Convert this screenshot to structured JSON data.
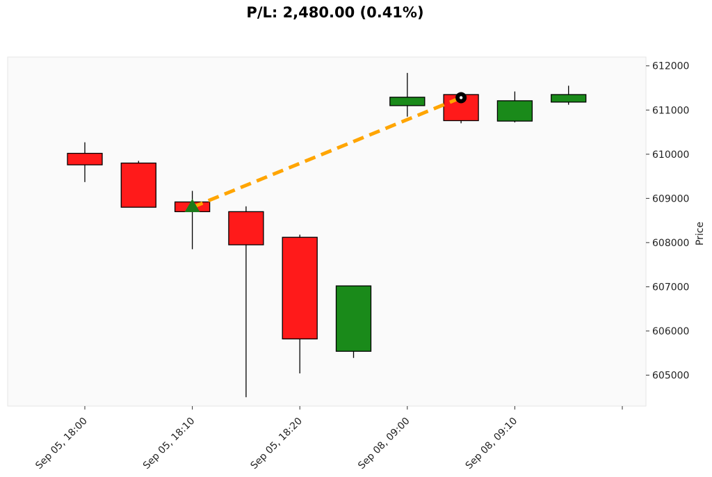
{
  "chart_data": {
    "type": "candlestick",
    "title": "P/L: 2,480.00 (0.41%)",
    "xlabel": "",
    "ylabel": "Price",
    "ylim": [
      604300,
      612200
    ],
    "grid": false,
    "yticks": [
      605000,
      606000,
      607000,
      608000,
      609000,
      610000,
      611000,
      612000
    ],
    "xtick_labels": [
      "Sep 05, 18:00",
      "Sep 05, 18:10",
      "Sep 05, 18:20",
      "Sep 08, 09:00",
      "Sep 08, 09:10",
      ""
    ],
    "candles": [
      {
        "open": 610020,
        "high": 610270,
        "low": 609370,
        "close": 609760
      },
      {
        "open": 609800,
        "high": 609850,
        "low": 608800,
        "close": 608800
      },
      {
        "open": 608920,
        "high": 609170,
        "low": 607850,
        "close": 608700
      },
      {
        "open": 608700,
        "high": 608820,
        "low": 604500,
        "close": 607950
      },
      {
        "open": 608120,
        "high": 608180,
        "low": 605040,
        "close": 605820
      },
      {
        "open": 605540,
        "high": 607020,
        "low": 605390,
        "close": 607020
      },
      {
        "open": 611100,
        "high": 611840,
        "low": 610850,
        "close": 611290
      },
      {
        "open": 611350,
        "high": 611350,
        "low": 610700,
        "close": 610760
      },
      {
        "open": 610750,
        "high": 611420,
        "low": 610720,
        "close": 611210
      },
      {
        "open": 611180,
        "high": 611550,
        "low": 611120,
        "close": 611350
      }
    ],
    "trade": {
      "entry_index": 2,
      "entry_price": 608800,
      "exit_index": 7,
      "exit_price": 611280
    },
    "colors": {
      "up": "#1a8a1a",
      "down": "#ff1a1a",
      "trade_line": "#ffa500",
      "entry_marker": "#1a7a1a",
      "exit_marker": "#000000",
      "plot_bg": "#fafafa"
    }
  }
}
